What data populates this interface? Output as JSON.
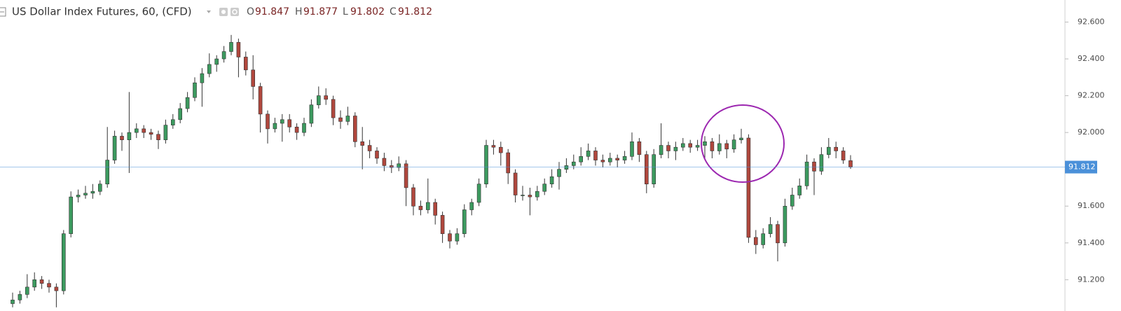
{
  "chart_data": {
    "type": "candlestick",
    "title": "US Dollar Index Futures, 60, (CFD)",
    "legend": [
      {
        "key": "O",
        "value": 91.847
      },
      {
        "key": "H",
        "value": 91.877
      },
      {
        "key": "L",
        "value": 91.802
      },
      {
        "key": "C",
        "value": 91.812
      }
    ],
    "up_color": "#3c9a5f",
    "down_color": "#b0473d",
    "price_line_color": "#4a90d9",
    "ylim": [
      91.03,
      92.72
    ],
    "yticks": [
      {
        "value": 91.2,
        "label": "91.200"
      },
      {
        "value": 91.4,
        "label": "91.400"
      },
      {
        "value": 91.6,
        "label": "91.600"
      },
      {
        "value": 92.0,
        "label": "92.000"
      },
      {
        "value": 92.2,
        "label": "92.200"
      },
      {
        "value": 92.4,
        "label": "92.400"
      },
      {
        "value": 92.6,
        "label": "92.600"
      }
    ],
    "candles": [
      [
        91.07,
        91.13,
        91.05,
        91.09
      ],
      [
        91.09,
        91.14,
        91.07,
        91.12
      ],
      [
        91.12,
        91.23,
        91.1,
        91.16
      ],
      [
        91.16,
        91.24,
        91.14,
        91.2
      ],
      [
        91.2,
        91.22,
        91.15,
        91.18
      ],
      [
        91.18,
        91.2,
        91.13,
        91.16
      ],
      [
        91.16,
        91.18,
        91.05,
        91.14
      ],
      [
        91.14,
        91.47,
        91.12,
        91.45
      ],
      [
        91.45,
        91.68,
        91.43,
        91.65
      ],
      [
        91.65,
        91.69,
        91.62,
        91.66
      ],
      [
        91.66,
        91.71,
        91.64,
        91.67
      ],
      [
        91.67,
        91.72,
        91.64,
        91.68
      ],
      [
        91.68,
        91.74,
        91.66,
        91.72
      ],
      [
        91.72,
        92.03,
        91.7,
        91.85
      ],
      [
        91.85,
        92.01,
        91.83,
        91.98
      ],
      [
        91.98,
        92.0,
        91.9,
        91.96
      ],
      [
        91.96,
        92.22,
        91.78,
        92.0
      ],
      [
        92.0,
        92.05,
        91.97,
        92.02
      ],
      [
        92.02,
        92.04,
        91.97,
        92.0
      ],
      [
        92.0,
        92.02,
        91.96,
        91.99
      ],
      [
        91.99,
        92.01,
        91.91,
        91.96
      ],
      [
        91.96,
        92.07,
        91.94,
        92.04
      ],
      [
        92.04,
        92.1,
        92.02,
        92.07
      ],
      [
        92.07,
        92.16,
        92.05,
        92.13
      ],
      [
        92.13,
        92.22,
        92.11,
        92.19
      ],
      [
        92.19,
        92.3,
        92.17,
        92.27
      ],
      [
        92.27,
        92.35,
        92.14,
        92.32
      ],
      [
        92.32,
        92.43,
        92.3,
        92.37
      ],
      [
        92.37,
        92.42,
        92.33,
        92.4
      ],
      [
        92.4,
        92.47,
        92.38,
        92.44
      ],
      [
        92.44,
        92.53,
        92.42,
        92.49
      ],
      [
        92.49,
        92.51,
        92.3,
        92.41
      ],
      [
        92.41,
        92.44,
        92.31,
        92.34
      ],
      [
        92.34,
        92.42,
        92.18,
        92.25
      ],
      [
        92.25,
        92.27,
        92.0,
        92.1
      ],
      [
        92.1,
        92.12,
        91.94,
        92.02
      ],
      [
        92.02,
        92.08,
        92.0,
        92.05
      ],
      [
        92.05,
        92.1,
        91.95,
        92.07
      ],
      [
        92.07,
        92.1,
        92.0,
        92.03
      ],
      [
        92.03,
        92.05,
        91.96,
        92.0
      ],
      [
        92.0,
        92.08,
        91.98,
        92.05
      ],
      [
        92.05,
        92.18,
        92.03,
        92.15
      ],
      [
        92.15,
        92.25,
        92.13,
        92.2
      ],
      [
        92.2,
        92.24,
        92.15,
        92.18
      ],
      [
        92.18,
        92.2,
        92.04,
        92.08
      ],
      [
        92.08,
        92.12,
        92.02,
        92.06
      ],
      [
        92.06,
        92.14,
        92.04,
        92.09
      ],
      [
        92.09,
        92.11,
        91.92,
        91.95
      ],
      [
        91.95,
        92.03,
        91.8,
        91.93
      ],
      [
        91.93,
        91.96,
        91.86,
        91.9
      ],
      [
        91.9,
        91.92,
        91.83,
        91.86
      ],
      [
        91.86,
        91.89,
        91.79,
        91.82
      ],
      [
        91.82,
        91.85,
        91.78,
        91.81
      ],
      [
        91.81,
        91.87,
        91.79,
        91.83
      ],
      [
        91.83,
        91.85,
        91.6,
        91.7
      ],
      [
        91.7,
        91.72,
        91.55,
        91.6
      ],
      [
        91.6,
        91.63,
        91.55,
        91.58
      ],
      [
        91.58,
        91.75,
        91.56,
        91.62
      ],
      [
        91.62,
        91.64,
        91.5,
        91.55
      ],
      [
        91.55,
        91.57,
        91.4,
        91.45
      ],
      [
        91.45,
        91.47,
        91.37,
        91.41
      ],
      [
        91.41,
        91.48,
        91.39,
        91.45
      ],
      [
        91.45,
        91.61,
        91.43,
        91.58
      ],
      [
        91.58,
        91.64,
        91.55,
        91.62
      ],
      [
        91.62,
        91.75,
        91.6,
        91.72
      ],
      [
        91.72,
        91.96,
        91.7,
        91.93
      ],
      [
        91.93,
        91.96,
        91.88,
        91.92
      ],
      [
        91.92,
        91.95,
        91.82,
        91.89
      ],
      [
        91.89,
        91.91,
        91.72,
        91.78
      ],
      [
        91.78,
        91.8,
        91.62,
        91.66
      ],
      [
        91.66,
        91.71,
        91.63,
        91.66
      ],
      [
        91.66,
        91.7,
        91.55,
        91.65
      ],
      [
        91.65,
        91.71,
        91.63,
        91.68
      ],
      [
        91.68,
        91.75,
        91.66,
        91.72
      ],
      [
        91.72,
        91.8,
        91.7,
        91.76
      ],
      [
        91.76,
        91.84,
        91.69,
        91.8
      ],
      [
        91.8,
        91.86,
        91.78,
        91.82
      ],
      [
        91.82,
        91.88,
        91.8,
        91.84
      ],
      [
        91.84,
        91.92,
        91.82,
        91.87
      ],
      [
        91.87,
        91.94,
        91.85,
        91.9
      ],
      [
        91.9,
        91.92,
        91.82,
        91.85
      ],
      [
        91.85,
        91.88,
        91.81,
        91.84
      ],
      [
        91.84,
        91.89,
        91.82,
        91.86
      ],
      [
        91.86,
        91.88,
        91.81,
        91.85
      ],
      [
        91.85,
        91.9,
        91.83,
        91.87
      ],
      [
        91.87,
        92.0,
        91.85,
        91.95
      ],
      [
        91.95,
        91.97,
        91.84,
        91.88
      ],
      [
        91.88,
        91.9,
        91.67,
        91.72
      ],
      [
        91.72,
        91.91,
        91.7,
        91.88
      ],
      [
        91.88,
        92.05,
        91.86,
        91.93
      ],
      [
        91.93,
        91.95,
        91.86,
        91.9
      ],
      [
        91.9,
        91.95,
        91.85,
        91.92
      ],
      [
        91.92,
        91.97,
        91.9,
        91.94
      ],
      [
        91.94,
        91.96,
        91.89,
        91.92
      ],
      [
        91.92,
        91.96,
        91.9,
        91.93
      ],
      [
        91.93,
        91.98,
        91.85,
        91.95
      ],
      [
        91.95,
        91.97,
        91.86,
        91.9
      ],
      [
        91.9,
        91.99,
        91.88,
        91.94
      ],
      [
        91.94,
        91.96,
        91.86,
        91.91
      ],
      [
        91.91,
        91.99,
        91.89,
        91.96
      ],
      [
        91.96,
        92.02,
        91.94,
        91.97
      ],
      [
        91.97,
        91.99,
        91.4,
        91.43
      ],
      [
        91.43,
        91.47,
        91.34,
        91.39
      ],
      [
        91.39,
        91.48,
        91.37,
        91.45
      ],
      [
        91.45,
        91.54,
        91.43,
        91.5
      ],
      [
        91.5,
        91.52,
        91.3,
        91.4
      ],
      [
        91.4,
        91.64,
        91.38,
        91.6
      ],
      [
        91.6,
        91.7,
        91.58,
        91.66
      ],
      [
        91.66,
        91.75,
        91.64,
        91.71
      ],
      [
        91.71,
        91.88,
        91.69,
        91.84
      ],
      [
        91.84,
        91.86,
        91.66,
        91.79
      ],
      [
        91.79,
        91.92,
        91.77,
        91.88
      ],
      [
        91.88,
        91.97,
        91.86,
        91.92
      ],
      [
        91.92,
        91.95,
        91.86,
        91.9
      ],
      [
        91.9,
        91.92,
        91.83,
        91.85
      ],
      [
        91.847,
        91.877,
        91.802,
        91.812
      ]
    ]
  }
}
